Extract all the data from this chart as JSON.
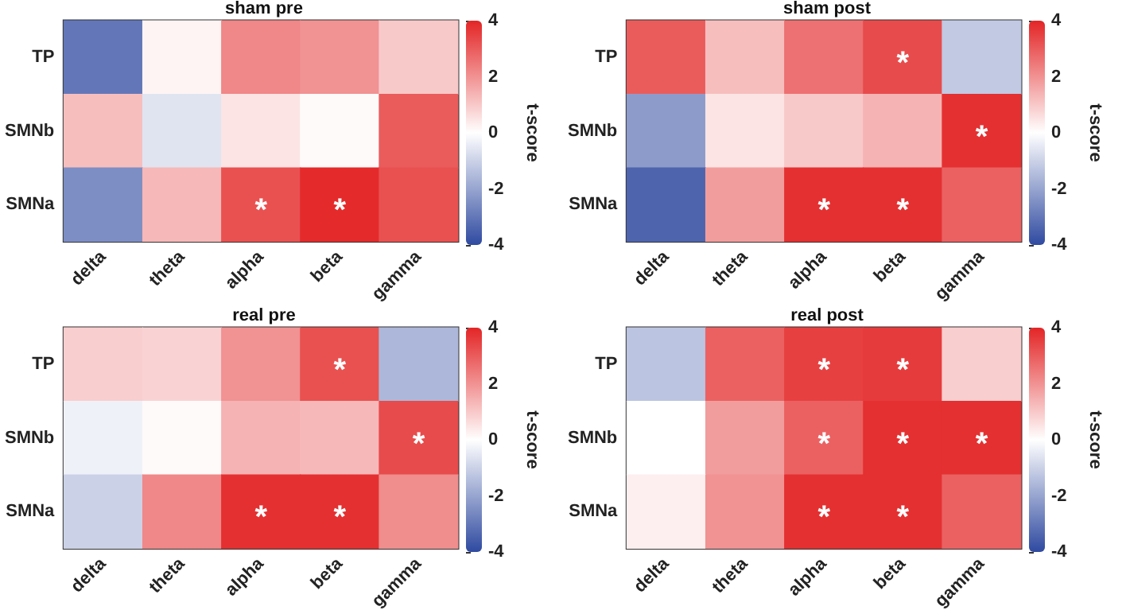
{
  "chart_data": [
    {
      "type": "heatmap",
      "title": "sham pre",
      "clabel": "t-score",
      "categories": [
        "delta",
        "theta",
        "alpha",
        "beta",
        "gamma"
      ],
      "y_categories": [
        "TP",
        "SMNb",
        "SMNa"
      ],
      "cells": [
        [
          -3.0,
          0.2,
          2.2,
          2.0,
          1.0
        ],
        [
          1.2,
          -0.6,
          0.5,
          0.1,
          3.0
        ],
        [
          -2.5,
          1.3,
          3.2,
          3.9,
          3.2
        ]
      ],
      "cell_labels": [
        [
          null,
          null,
          null,
          null,
          null
        ],
        [
          null,
          null,
          null,
          null,
          null
        ],
        [
          null,
          null,
          "*",
          "*",
          null
        ]
      ],
      "clim": [
        -4,
        4
      ],
      "cticks": [
        -4,
        -2,
        0,
        2,
        4
      ],
      "colors": [
        "#2f4aa0",
        "#ffffff",
        "#e32526"
      ]
    },
    {
      "type": "heatmap",
      "title": "sham post",
      "clabel": "t-score",
      "categories": [
        "delta",
        "theta",
        "alpha",
        "beta",
        "gamma"
      ],
      "y_categories": [
        "TP",
        "SMNb",
        "SMNa"
      ],
      "cells": [
        [
          3.0,
          1.2,
          2.6,
          3.3,
          -1.2
        ],
        [
          -2.2,
          0.5,
          1.0,
          1.4,
          3.8
        ],
        [
          -3.4,
          1.8,
          3.8,
          3.8,
          2.9
        ]
      ],
      "cell_labels": [
        [
          null,
          null,
          null,
          "*",
          null
        ],
        [
          null,
          null,
          null,
          null,
          "*"
        ],
        [
          null,
          null,
          "*",
          "*",
          null
        ]
      ],
      "clim": [
        -4,
        4
      ],
      "cticks": [
        -4,
        -2,
        0,
        2,
        4
      ],
      "colors": [
        "#2f4aa0",
        "#ffffff",
        "#e32526"
      ]
    },
    {
      "type": "heatmap",
      "title": "real pre",
      "clabel": "t-score",
      "categories": [
        "delta",
        "theta",
        "alpha",
        "beta",
        "gamma"
      ],
      "y_categories": [
        "TP",
        "SMNb",
        "SMNa"
      ],
      "cells": [
        [
          0.9,
          0.8,
          2.0,
          3.2,
          -1.6
        ],
        [
          -0.3,
          0.1,
          1.4,
          1.3,
          3.3
        ],
        [
          -1.0,
          2.2,
          3.8,
          3.8,
          2.1
        ]
      ],
      "cell_labels": [
        [
          null,
          null,
          null,
          "*",
          null
        ],
        [
          null,
          null,
          null,
          null,
          "*"
        ],
        [
          null,
          null,
          "*",
          "*",
          null
        ]
      ],
      "clim": [
        -4,
        4
      ],
      "cticks": [
        -4,
        -2,
        0,
        2,
        4
      ],
      "colors": [
        "#2f4aa0",
        "#ffffff",
        "#e32526"
      ]
    },
    {
      "type": "heatmap",
      "title": "real post",
      "clabel": "t-score",
      "categories": [
        "delta",
        "theta",
        "alpha",
        "beta",
        "gamma"
      ],
      "y_categories": [
        "TP",
        "SMNb",
        "SMNa"
      ],
      "cells": [
        [
          -1.3,
          2.9,
          3.5,
          3.6,
          0.9
        ],
        [
          0.0,
          1.8,
          2.9,
          3.8,
          3.8
        ],
        [
          0.3,
          2.0,
          3.8,
          3.8,
          2.9
        ]
      ],
      "cell_labels": [
        [
          null,
          null,
          "*",
          "*",
          null
        ],
        [
          null,
          null,
          "*",
          "*",
          "*"
        ],
        [
          null,
          null,
          "*",
          "*",
          null
        ]
      ],
      "clim": [
        -4,
        4
      ],
      "cticks": [
        -4,
        -2,
        0,
        2,
        4
      ],
      "colors": [
        "#2f4aa0",
        "#ffffff",
        "#e32526"
      ]
    }
  ]
}
